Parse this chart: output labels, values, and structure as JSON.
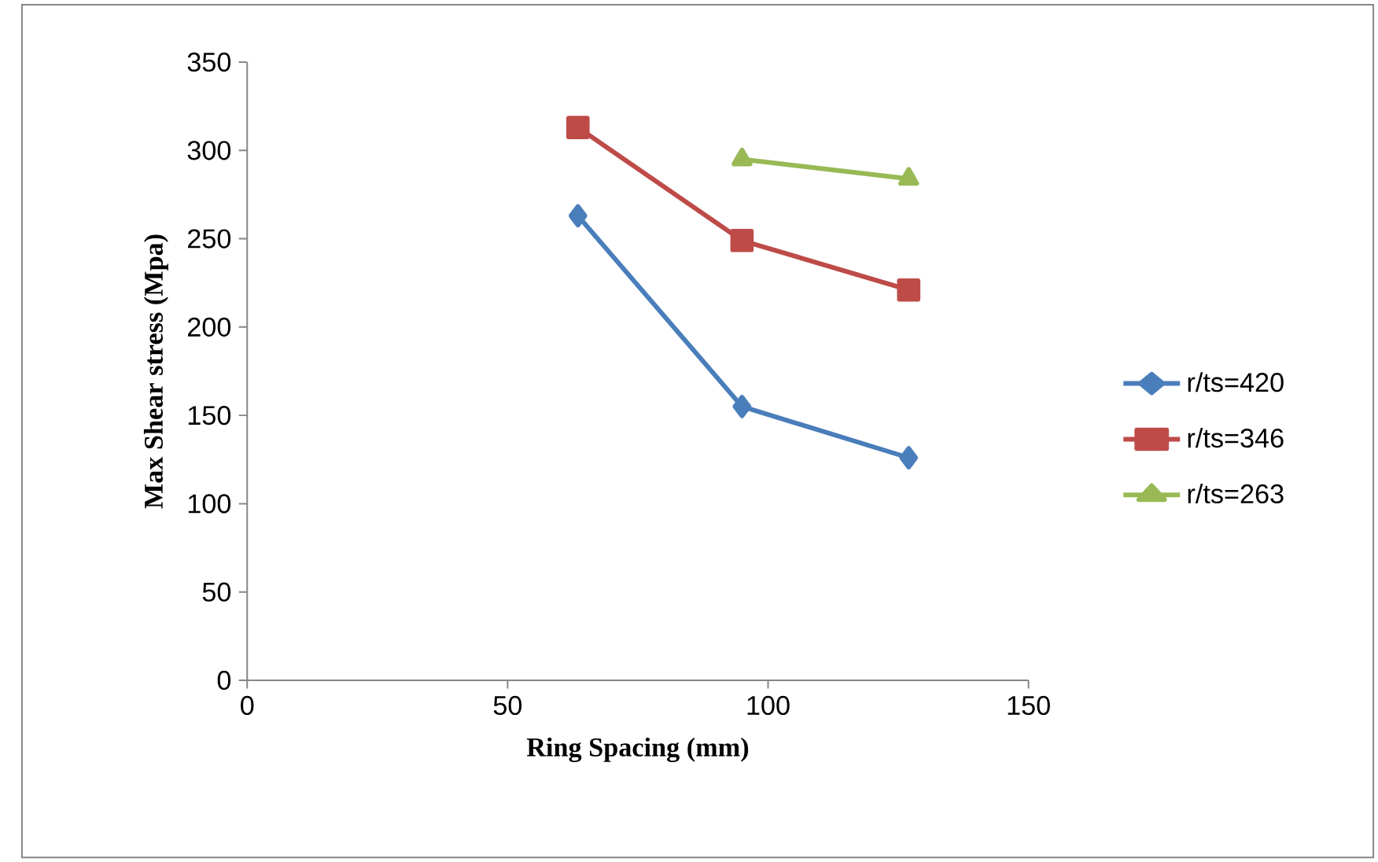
{
  "chart_data": {
    "type": "line",
    "xlabel": "Ring Spacing (mm)",
    "ylabel": "Max Shear stress (Mpa)",
    "x": [
      63.5,
      95,
      127
    ],
    "series": [
      {
        "name": "r/ts=420",
        "color": "#4a7ebb",
        "marker": "diamond",
        "values": [
          263,
          155,
          126
        ]
      },
      {
        "name": "r/ts=346",
        "color": "#be4b48",
        "marker": "square",
        "values": [
          313,
          249,
          221
        ]
      },
      {
        "name": "r/ts=263",
        "color": "#98b954",
        "marker": "triangle",
        "values": [
          null,
          295,
          284
        ]
      }
    ],
    "xlim": [
      0,
      150
    ],
    "xticks": [
      0,
      50,
      100,
      150
    ],
    "ylim": [
      0,
      350
    ],
    "yticks": [
      0,
      50,
      100,
      150,
      200,
      250,
      300,
      350
    ],
    "grid": false,
    "legend": "right",
    "line_style": "solid"
  }
}
